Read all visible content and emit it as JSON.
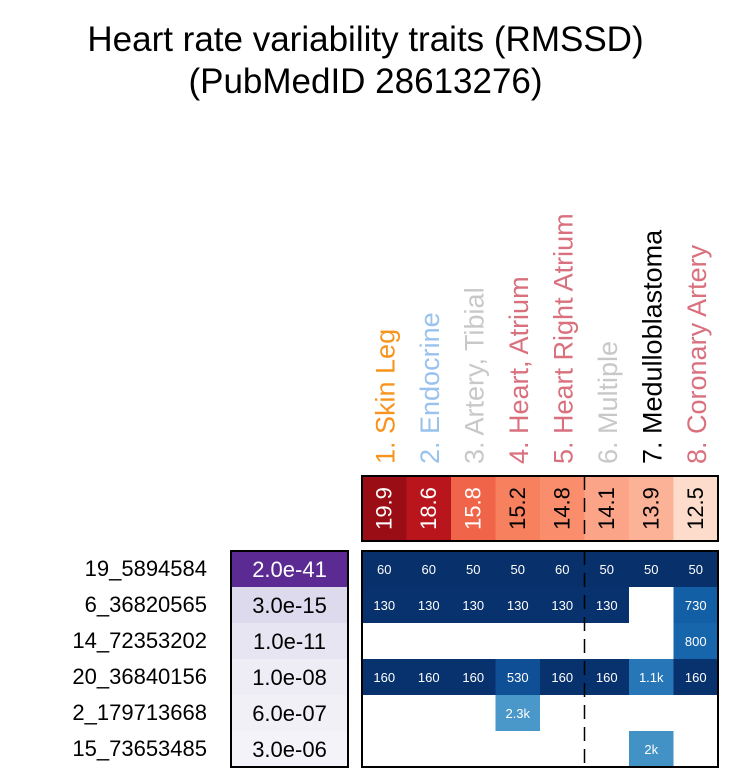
{
  "title": "Heart rate variability traits (RMSSD)",
  "subtitle": "(PubMedID 28613276)",
  "chart_data": {
    "type": "heatmap",
    "tissues": [
      {
        "label": "1. Skin Leg",
        "color": "#F7941D",
        "score": "19.9",
        "fill": "#9B0D14"
      },
      {
        "label": "2. Endocrine",
        "color": "#99C2EE",
        "score": "18.6",
        "fill": "#B8161C"
      },
      {
        "label": "3. Artery, Tibial",
        "color": "#C8C8C8",
        "score": "15.8",
        "fill": "#F0654A"
      },
      {
        "label": "4. Heart, Atrium",
        "color": "#D9707E",
        "score": "15.2",
        "fill": "#F7805F"
      },
      {
        "label": "5. Heart Right Atrium",
        "color": "#D9707E",
        "score": "14.8",
        "fill": "#FA8D6C"
      },
      {
        "label": "6. Multiple",
        "color": "#C8C8C8",
        "score": "14.1",
        "fill": "#FCA488"
      },
      {
        "label": "7. Medulloblastoma",
        "color": "#000000",
        "score": "13.9",
        "fill": "#FCB296"
      },
      {
        "label": "8. Coronary Artery",
        "color": "#D9707E",
        "score": "12.5",
        "fill": "#FDDCCB"
      }
    ],
    "variants": [
      {
        "id": "19_5894584",
        "pvalue": "2.0e-41",
        "pfill": "#5B2A92",
        "ptext": "#FFFFFF",
        "cells": [
          "60",
          "60",
          "50",
          "50",
          "60",
          "50",
          "50",
          "50"
        ]
      },
      {
        "id": "6_36820565",
        "pvalue": "3.0e-15",
        "pfill": "#DCDAEC",
        "ptext": "#000000",
        "cells": [
          "130",
          "130",
          "130",
          "130",
          "130",
          "130",
          "",
          "730"
        ]
      },
      {
        "id": "14_72353202",
        "pvalue": "1.0e-11",
        "pfill": "#E7E5F2",
        "ptext": "#000000",
        "cells": [
          "",
          "",
          "",
          "",
          "",
          "",
          "",
          "800"
        ]
      },
      {
        "id": "20_36840156",
        "pvalue": "1.0e-08",
        "pfill": "#EEECF5",
        "ptext": "#000000",
        "cells": [
          "160",
          "160",
          "160",
          "530",
          "160",
          "160",
          "1.1k",
          "160"
        ]
      },
      {
        "id": "2_179713668",
        "pvalue": "6.0e-07",
        "pfill": "#F1F0F7",
        "ptext": "#000000",
        "cells": [
          "",
          "",
          "",
          "2.3k",
          "",
          "",
          "",
          ""
        ]
      },
      {
        "id": "15_73653485",
        "pvalue": "3.0e-06",
        "pfill": "#F4F3F9",
        "ptext": "#000000",
        "cells": [
          "",
          "",
          "",
          "",
          "",
          "",
          "2k",
          ""
        ]
      }
    ],
    "cell_colors": {
      "50": "#08306B",
      "60": "#08306B",
      "130": "#08326E",
      "160": "#08326E",
      "530": "#0F4F95",
      "730": "#135FA5",
      "800": "#1765AB",
      "1.1k": "#2777B8",
      "2.3k": "#4A97C9",
      "2k": "#4292C6"
    }
  }
}
